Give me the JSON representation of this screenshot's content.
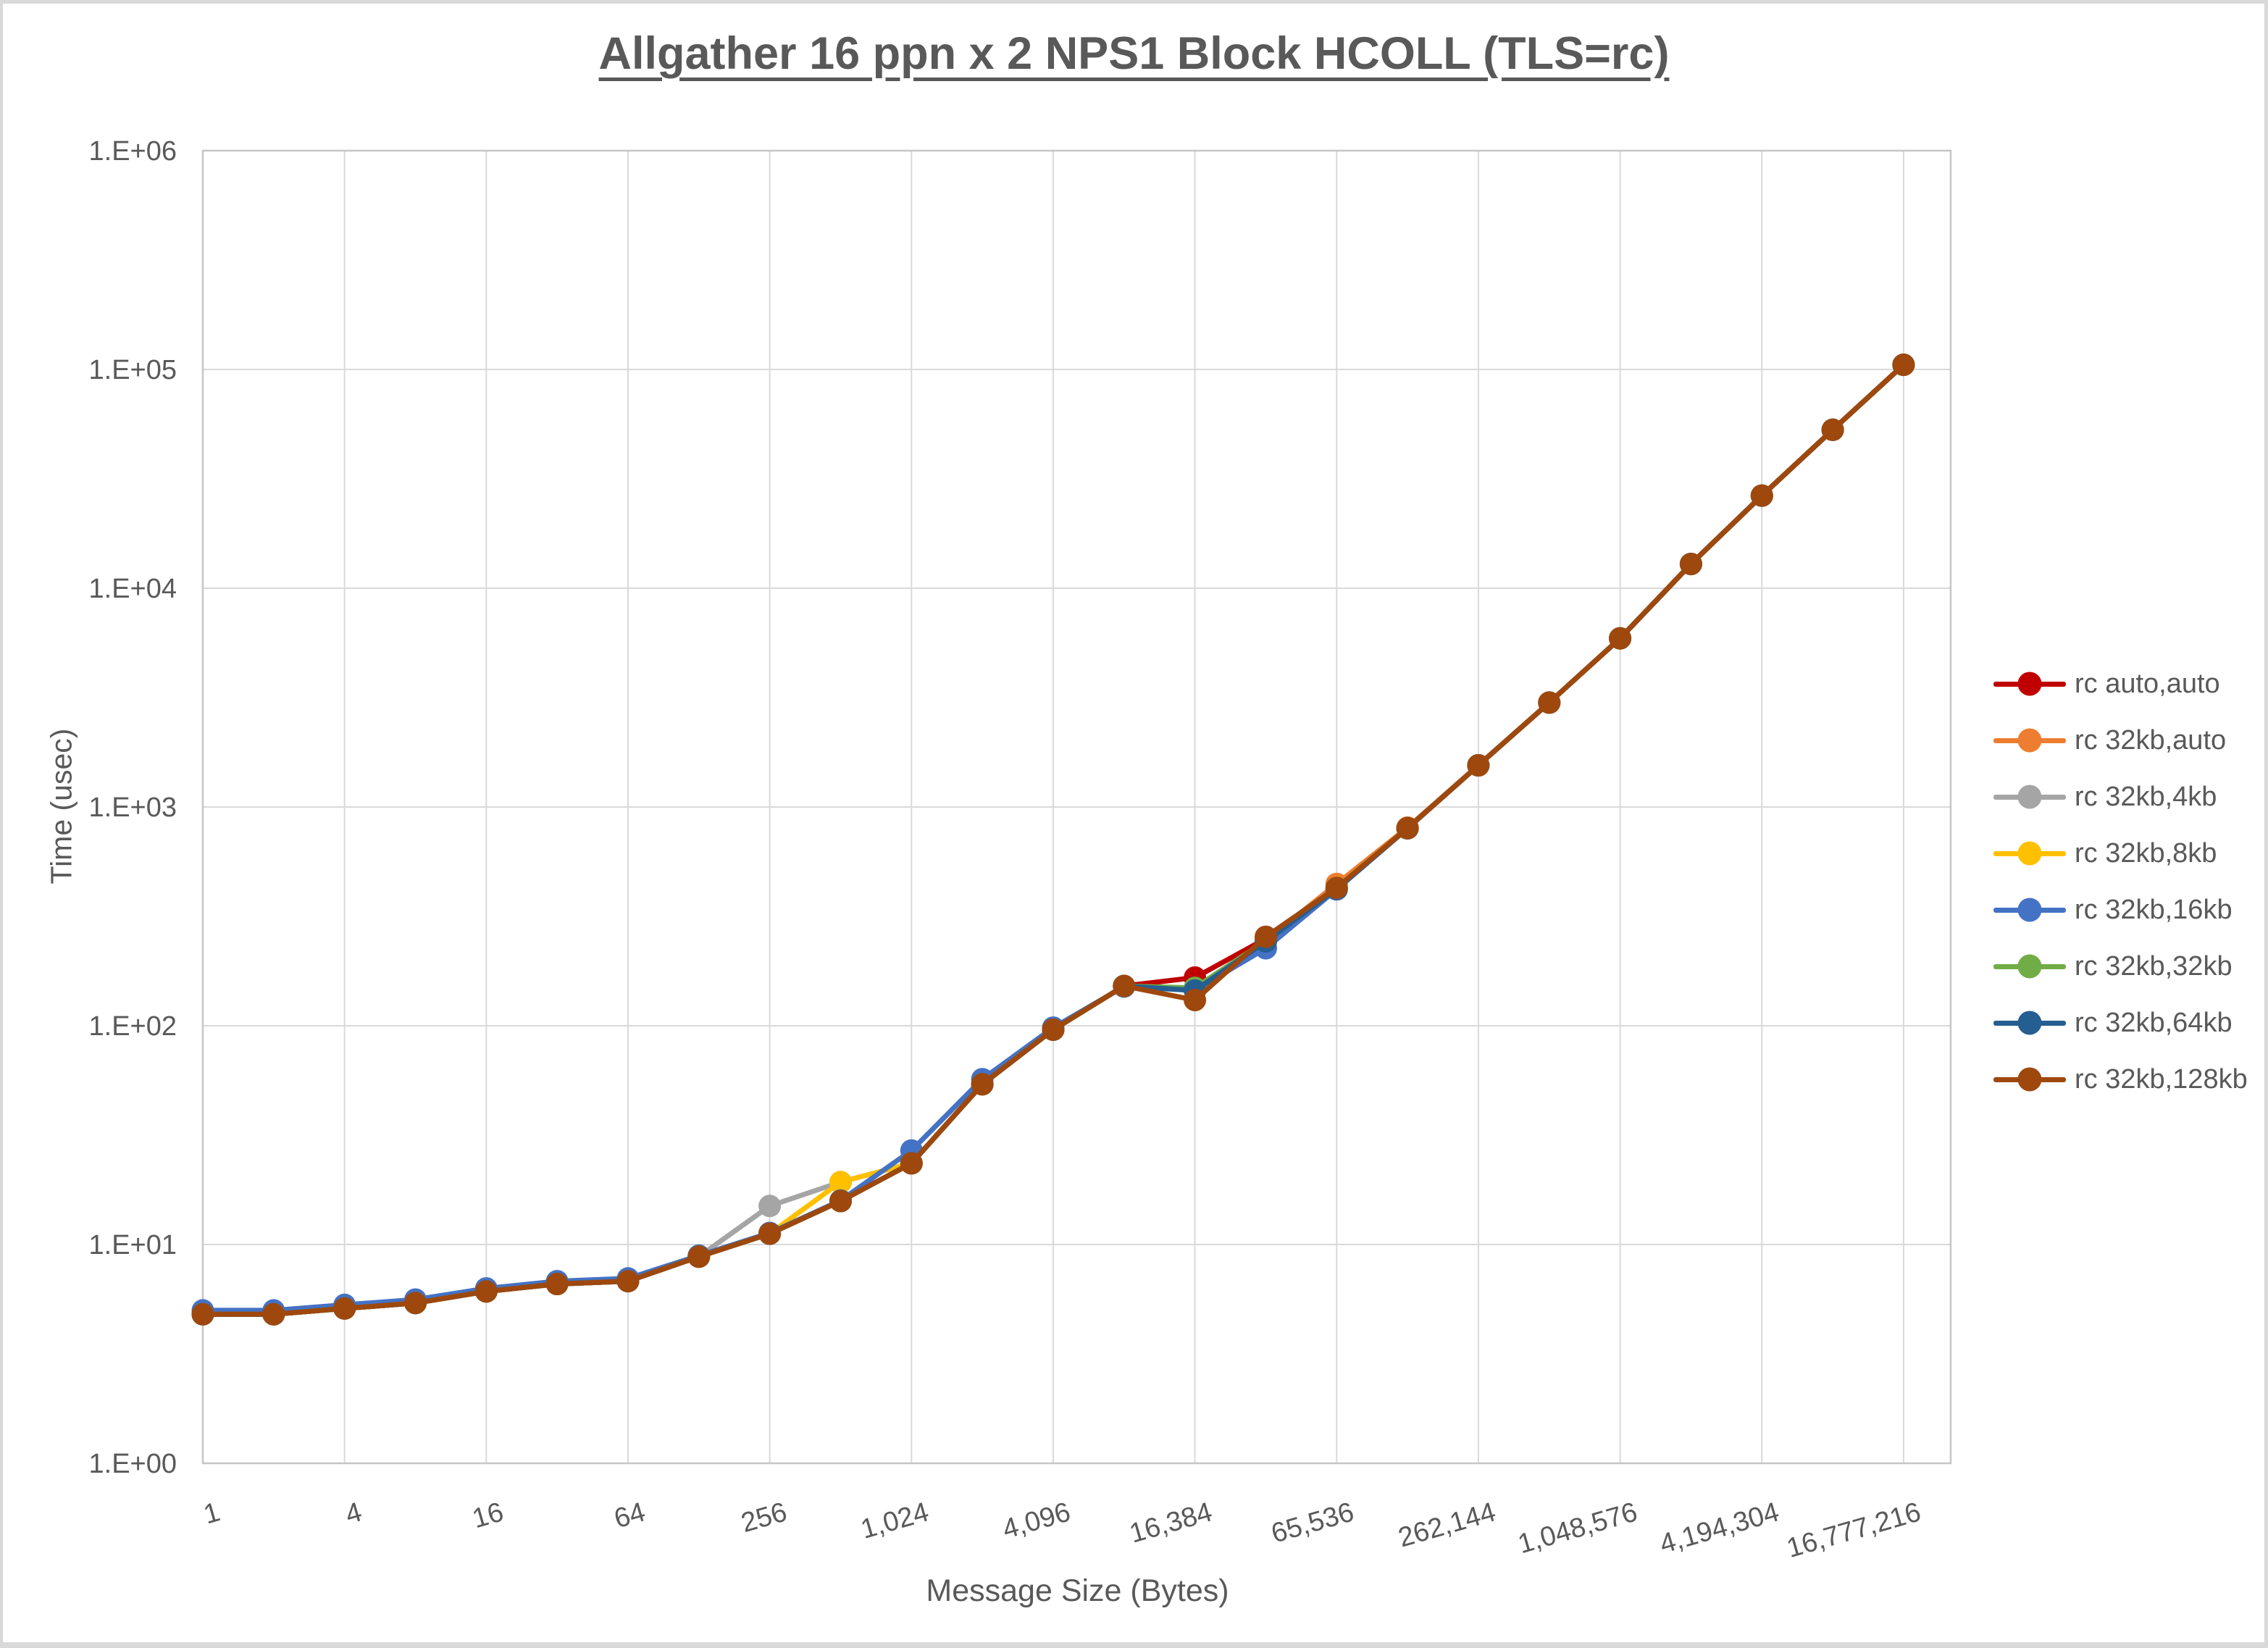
{
  "window": {
    "border_color": "#D9D9D9",
    "background": "#FFFFFF"
  },
  "colors": {
    "text": "#595959",
    "gridline": "#D9D9D9",
    "plot_frame": "#C6C6C6"
  },
  "chart_data": {
    "type": "line",
    "title": "Allgather 16 ppn x 2 NPS1 Block HCOLL (TLS=rc)",
    "xlabel": "Message Size (Bytes)",
    "ylabel": "Time (usec)",
    "x_scale": "log2",
    "y_scale": "log10",
    "grid": true,
    "legend_position": "right",
    "ylim": [
      1,
      1000000
    ],
    "y_tick_labels": [
      "1.E+00",
      "1.E+01",
      "1.E+02",
      "1.E+03",
      "1.E+04",
      "1.E+05",
      "1.E+06"
    ],
    "x_tick_labels": [
      "1",
      "4",
      "16",
      "64",
      "256",
      "1,024",
      "4,096",
      "16,384",
      "65,536",
      "262,144",
      "1,048,576",
      "4,194,304",
      "16,777,216"
    ],
    "x_tick_log2": [
      0,
      2,
      4,
      6,
      8,
      10,
      12,
      14,
      16,
      18,
      20,
      22,
      24
    ],
    "x": [
      1,
      2,
      4,
      8,
      16,
      32,
      64,
      128,
      256,
      512,
      1024,
      2048,
      4096,
      8192,
      16384,
      32768,
      65536,
      131072,
      262144,
      524288,
      1048576,
      2097152,
      4194304,
      8388608,
      16777216
    ],
    "series": [
      {
        "name": "rc auto,auto",
        "color": "#C00000",
        "values": [
          4.8,
          4.8,
          5.1,
          5.4,
          6.1,
          6.6,
          6.8,
          8.8,
          11.2,
          15.8,
          23.5,
          54,
          96,
          152,
          166,
          250,
          425,
          800,
          1550,
          3000,
          5900,
          12900,
          26500,
          53000,
          105000
        ]
      },
      {
        "name": "rc 32kb,auto",
        "color": "#ED7D31",
        "values": [
          4.8,
          4.8,
          5.1,
          5.4,
          6.1,
          6.6,
          6.8,
          8.8,
          11.2,
          15.8,
          23.5,
          54,
          96,
          152,
          147,
          245,
          445,
          805,
          1550,
          3000,
          5900,
          12900,
          26500,
          53000,
          105000
        ]
      },
      {
        "name": "rc 32kb,4kb",
        "color": "#A5A5A5",
        "values": [
          4.8,
          4.8,
          5.1,
          5.4,
          6.1,
          6.6,
          6.8,
          8.8,
          15.0,
          19.3,
          23.5,
          54,
          96,
          152,
          147,
          245,
          425,
          800,
          1550,
          3000,
          5900,
          12900,
          26500,
          53000,
          105000
        ]
      },
      {
        "name": "rc 32kb,8kb",
        "color": "#FFC000",
        "values": [
          4.8,
          4.8,
          5.1,
          5.4,
          6.1,
          6.6,
          6.8,
          8.8,
          11.2,
          19.3,
          23.5,
          54,
          96,
          152,
          146,
          245,
          428,
          800,
          1550,
          3000,
          5900,
          12900,
          26500,
          53000,
          105000
        ]
      },
      {
        "name": "rc 32kb,16kb",
        "color": "#4472C4",
        "values": [
          5.0,
          5.0,
          5.3,
          5.6,
          6.3,
          6.8,
          7.0,
          8.9,
          11.3,
          15.9,
          26.9,
          57,
          98,
          151,
          145,
          226,
          420,
          798,
          1550,
          3000,
          5900,
          12900,
          26500,
          53000,
          105000
        ]
      },
      {
        "name": "rc 32kb,32kb",
        "color": "#70AD47",
        "values": [
          4.8,
          4.8,
          5.1,
          5.4,
          6.1,
          6.6,
          6.8,
          8.8,
          11.2,
          15.8,
          23.5,
          54,
          96,
          152,
          149,
          245,
          425,
          800,
          1550,
          3000,
          5900,
          12900,
          26500,
          53000,
          105000
        ]
      },
      {
        "name": "rc 32kb,64kb",
        "color": "#255E91",
        "values": [
          4.8,
          4.8,
          5.1,
          5.4,
          6.1,
          6.6,
          6.8,
          8.8,
          11.2,
          15.8,
          23.5,
          54,
          96,
          152,
          145,
          243,
          423,
          800,
          1550,
          3000,
          5900,
          12900,
          26500,
          53000,
          105000
        ]
      },
      {
        "name": "rc 32kb,128kb",
        "color": "#9E480E",
        "values": [
          4.8,
          4.8,
          5.1,
          5.4,
          6.1,
          6.6,
          6.8,
          8.8,
          11.2,
          15.8,
          23.5,
          54,
          96,
          152,
          131,
          255,
          427,
          800,
          1550,
          3000,
          5900,
          12900,
          26500,
          53000,
          105000
        ]
      }
    ]
  }
}
